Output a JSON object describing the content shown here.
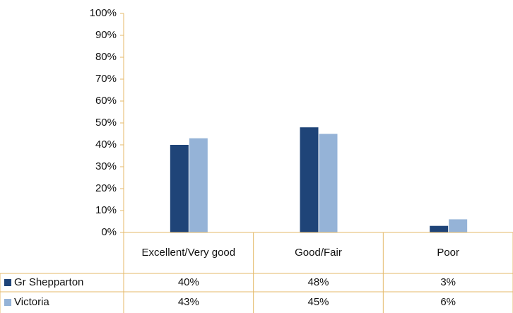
{
  "chart_data": {
    "type": "bar",
    "categories": [
      "Excellent/Very good",
      "Good/Fair",
      "Poor"
    ],
    "series": [
      {
        "name": "Gr Shepparton",
        "color": "#1f4478",
        "values": [
          40,
          48,
          3
        ],
        "value_labels": [
          "40%",
          "48%",
          "3%"
        ]
      },
      {
        "name": "Victoria",
        "color": "#95b3d7",
        "values": [
          43,
          45,
          6
        ],
        "value_labels": [
          "43%",
          "45%",
          "6%"
        ]
      }
    ],
    "ylim": [
      0,
      100
    ],
    "yticks": [
      {
        "value": 0,
        "label": "0%"
      },
      {
        "value": 10,
        "label": "10%"
      },
      {
        "value": 20,
        "label": "20%"
      },
      {
        "value": 30,
        "label": "30%"
      },
      {
        "value": 40,
        "label": "40%"
      },
      {
        "value": 50,
        "label": "50%"
      },
      {
        "value": 60,
        "label": "60%"
      },
      {
        "value": 70,
        "label": "70%"
      },
      {
        "value": 80,
        "label": "80%"
      },
      {
        "value": 90,
        "label": "90%"
      },
      {
        "value": 100,
        "label": "100%"
      }
    ],
    "grid": false
  }
}
